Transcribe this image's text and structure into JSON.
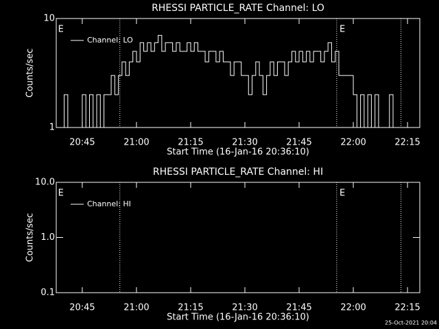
{
  "chart_data": [
    {
      "type": "line",
      "title": "RHESSI PARTICLE_RATE Channel: LO",
      "x_label": "Start Time (16-Jan-16 20:36:10)",
      "y_label": "Counts/sec",
      "log_y": true,
      "step": true,
      "legend": "upper left",
      "xlim": [
        1237.8,
        1338.4
      ],
      "ylim": [
        1,
        10
      ],
      "xticks": [
        {
          "value": 1245,
          "label": "20:45"
        },
        {
          "value": 1260,
          "label": "21:00"
        },
        {
          "value": 1275,
          "label": "21:15"
        },
        {
          "value": 1290,
          "label": "21:30"
        },
        {
          "value": 1305,
          "label": "21:45"
        },
        {
          "value": 1320,
          "label": "22:00"
        },
        {
          "value": 1335,
          "label": "22:15"
        }
      ],
      "yticks": [
        1,
        10
      ],
      "vlines": [
        1255.4,
        1315.4,
        1333.2
      ],
      "annotations": [
        {
          "text": "E",
          "x": 1238.3
        },
        {
          "text": "E",
          "x": 1316.2
        }
      ],
      "x": [
        1239,
        1240,
        1241,
        1242,
        1243,
        1244,
        1245,
        1246,
        1247,
        1248,
        1249,
        1250,
        1251,
        1252,
        1253,
        1254,
        1255,
        1256,
        1257,
        1258,
        1259,
        1260,
        1261,
        1262,
        1263,
        1264,
        1265,
        1266,
        1267,
        1268,
        1269,
        1270,
        1271,
        1272,
        1273,
        1274,
        1275,
        1276,
        1277,
        1278,
        1279,
        1280,
        1281,
        1282,
        1283,
        1284,
        1285,
        1286,
        1287,
        1288,
        1289,
        1290,
        1291,
        1292,
        1293,
        1294,
        1295,
        1296,
        1297,
        1298,
        1299,
        1300,
        1301,
        1302,
        1303,
        1304,
        1305,
        1306,
        1307,
        1308,
        1309,
        1310,
        1311,
        1312,
        1313,
        1314,
        1315,
        1316,
        1317,
        1318,
        1319,
        1320,
        1321,
        1322,
        1323,
        1324,
        1325,
        1326,
        1327,
        1328,
        1329,
        1330,
        1331
      ],
      "series": [
        {
          "name": "Channel: LO",
          "color": "#ffffff",
          "values": [
            1,
            2,
            1,
            1,
            1,
            1,
            2,
            1,
            2,
            1,
            2,
            1,
            2,
            2,
            3,
            2,
            3,
            4,
            3,
            4,
            5,
            4,
            6,
            5,
            6,
            5,
            6,
            7,
            5,
            6,
            6,
            5,
            6,
            5,
            5,
            6,
            5,
            6,
            5,
            5,
            4,
            5,
            5,
            4,
            5,
            4,
            4,
            3,
            4,
            4,
            3,
            3,
            2,
            3,
            4,
            3,
            2,
            3,
            4,
            3,
            4,
            4,
            3,
            4,
            5,
            4,
            5,
            4,
            5,
            4,
            5,
            5,
            4,
            5,
            6,
            4,
            5,
            3,
            3,
            3,
            3,
            2,
            1,
            2,
            1,
            2,
            1,
            2,
            1,
            1,
            1,
            2,
            1
          ]
        }
      ]
    },
    {
      "type": "line",
      "title": "RHESSI PARTICLE_RATE Channel: HI",
      "x_label": "Start Time (16-Jan-16 20:36:10)",
      "y_label": "Counts/sec",
      "log_y": true,
      "step": true,
      "legend": "upper left",
      "xlim": [
        1237.8,
        1338.4
      ],
      "ylim": [
        0.1,
        10
      ],
      "xticks": [
        {
          "value": 1245,
          "label": "20:45"
        },
        {
          "value": 1260,
          "label": "21:00"
        },
        {
          "value": 1275,
          "label": "21:15"
        },
        {
          "value": 1290,
          "label": "21:30"
        },
        {
          "value": 1305,
          "label": "21:45"
        },
        {
          "value": 1320,
          "label": "22:00"
        },
        {
          "value": 1335,
          "label": "22:15"
        }
      ],
      "yticks": [
        {
          "value": 0.1,
          "label": "0.1"
        },
        {
          "value": 1,
          "label": "1.0"
        },
        {
          "value": 10,
          "label": "10.0"
        }
      ],
      "vlines": [
        1255.4,
        1315.4,
        1333.2
      ],
      "annotations": [
        {
          "text": "E",
          "x": 1238.3
        },
        {
          "text": "E",
          "x": 1316.2
        }
      ],
      "series": [
        {
          "name": "Channel: HI",
          "color": "#ffffff"
        }
      ]
    }
  ],
  "footer": "25-Oct-2021 20:04"
}
